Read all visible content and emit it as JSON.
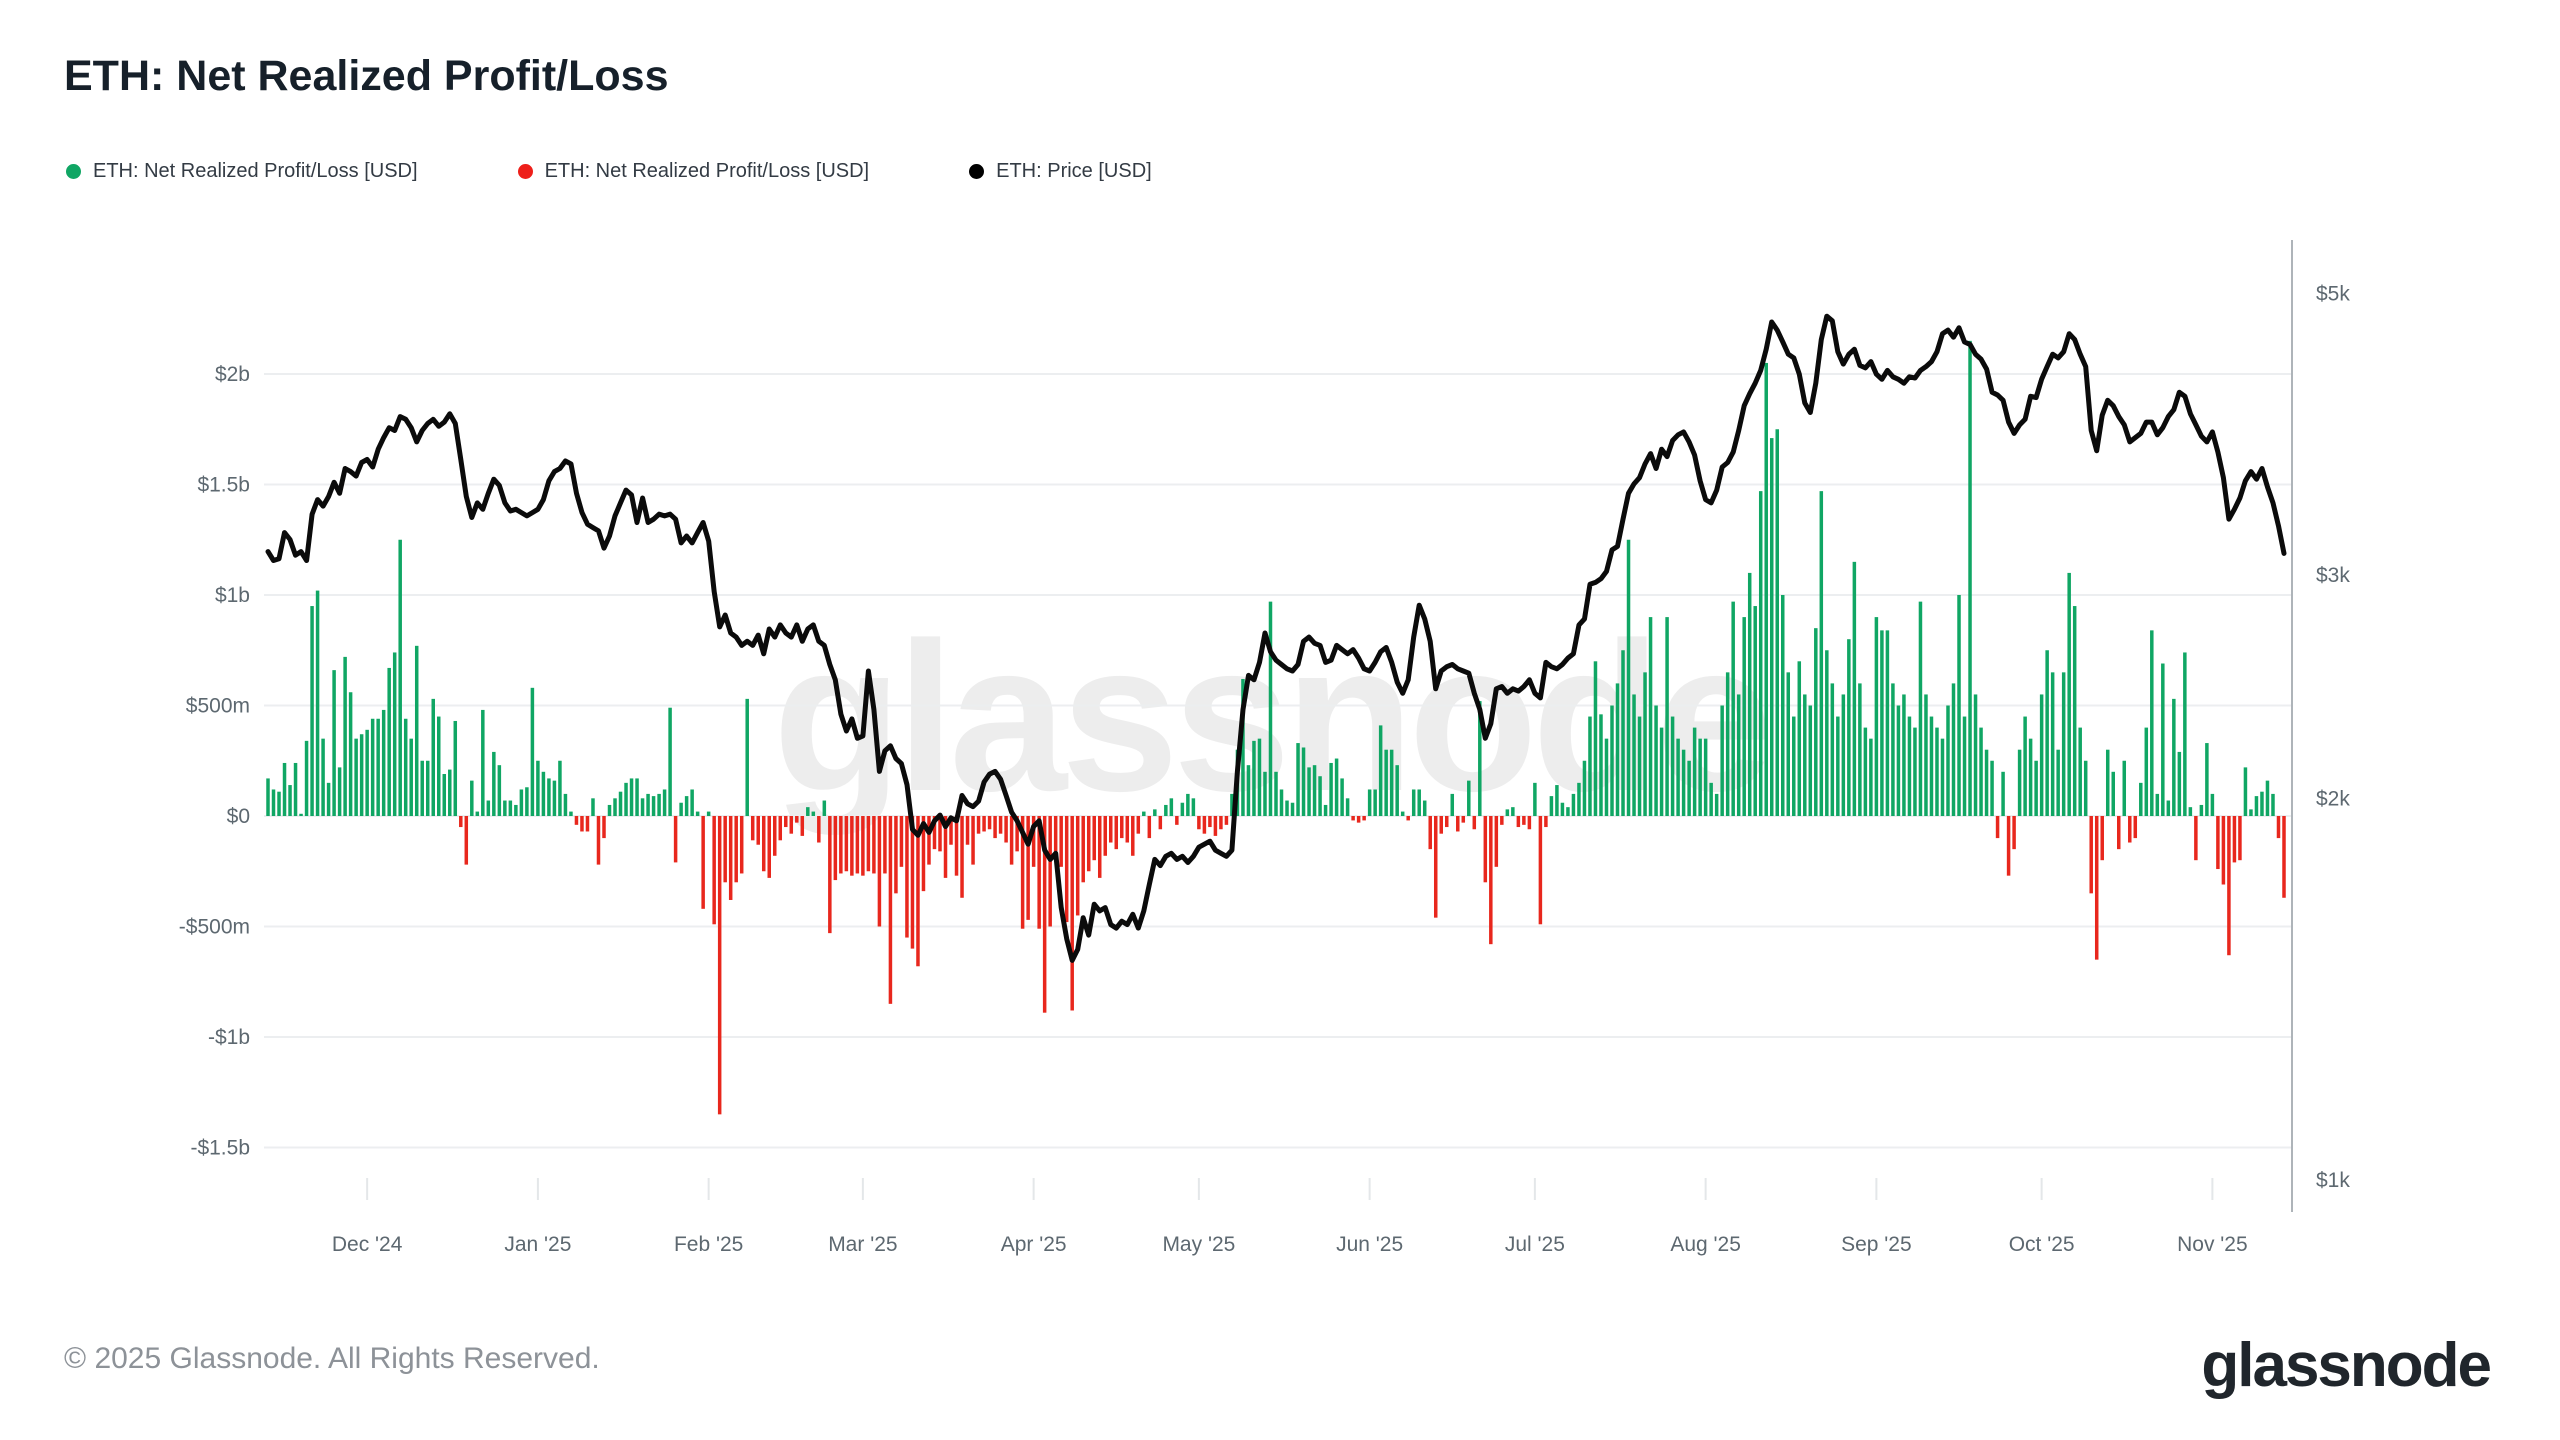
{
  "title": "ETH: Net Realized Profit/Loss",
  "legend": [
    {
      "label": "ETH: Net Realized Profit/Loss [USD]",
      "color": "#10a664",
      "marker": "circle"
    },
    {
      "label": "ETH: Net Realized Profit/Loss [USD]",
      "color": "#ee1f1a",
      "marker": "circle"
    },
    {
      "label": "ETH: Price [USD]",
      "color": "#000000",
      "marker": "circle"
    }
  ],
  "watermark": "glassnode",
  "footer": {
    "copyright": "© 2025 Glassnode. All Rights Reserved.",
    "brand": "glassnode"
  },
  "colors": {
    "profit_bar": "#10a664",
    "loss_bar": "#e8271d",
    "price_line": "#0b0b0b",
    "gridline": "#eceef0",
    "axis_text": "#5d6870",
    "right_spine": "#aeb4b9",
    "month_tick": "#e4e7e9",
    "watermark": "#ededed"
  },
  "chart_data": {
    "type": "bar",
    "title": "ETH: Net Realized Profit/Loss",
    "x_domain": {
      "start_date": "2024-11-13",
      "end_date": "2025-11-14",
      "n_days": 367
    },
    "x_axis": {
      "months": [
        {
          "label": "Dec '24",
          "index": 18
        },
        {
          "label": "Jan '25",
          "index": 49
        },
        {
          "label": "Feb '25",
          "index": 80
        },
        {
          "label": "Mar '25",
          "index": 108
        },
        {
          "label": "Apr '25",
          "index": 139
        },
        {
          "label": "May '25",
          "index": 169
        },
        {
          "label": "Jun '25",
          "index": 200
        },
        {
          "label": "Jul '25",
          "index": 230
        },
        {
          "label": "Aug '25",
          "index": 261
        },
        {
          "label": "Sep '25",
          "index": 292
        },
        {
          "label": "Oct '25",
          "index": 322
        },
        {
          "label": "Nov '25",
          "index": 353
        }
      ]
    },
    "left_axis": {
      "title": "Net Realized Profit/Loss, USD billions",
      "ticks": [
        {
          "label": "$2b",
          "value": 2.0
        },
        {
          "label": "$1.5b",
          "value": 1.5
        },
        {
          "label": "$1b",
          "value": 1.0
        },
        {
          "label": "$500m",
          "value": 0.5
        },
        {
          "label": "$0",
          "value": 0.0
        },
        {
          "label": "-$500m",
          "value": -0.5
        },
        {
          "label": "-$1b",
          "value": -1.0
        },
        {
          "label": "-$1.5b",
          "value": -1.5
        }
      ],
      "range_b": [
        -1.75,
        2.6
      ],
      "grid": true
    },
    "right_axis": {
      "title": "ETH Price, USD",
      "scale": "log",
      "ticks": [
        {
          "label": "$5k",
          "value": 5000
        },
        {
          "label": "$3k",
          "value": 3000
        },
        {
          "label": "$2k",
          "value": 2000
        },
        {
          "label": "$1k",
          "value": 1000
        }
      ]
    },
    "series": [
      {
        "name": "ETH: Net Realized Profit/Loss [USD]",
        "type": "bar",
        "unit": "USD billions",
        "positive_color": "#10a664",
        "negative_color": "#e8271d",
        "values": [
          0.17,
          0.12,
          0.11,
          0.24,
          0.14,
          0.24,
          0.01,
          0.34,
          0.95,
          1.02,
          0.35,
          0.15,
          0.66,
          0.22,
          0.72,
          0.56,
          0.35,
          0.37,
          0.39,
          0.44,
          0.44,
          0.48,
          0.67,
          0.74,
          1.25,
          0.44,
          0.35,
          0.77,
          0.25,
          0.25,
          0.53,
          0.45,
          0.19,
          0.21,
          0.43,
          -0.05,
          -0.22,
          0.16,
          0.02,
          0.48,
          0.07,
          0.29,
          0.23,
          0.07,
          0.07,
          0.05,
          0.12,
          0.13,
          0.58,
          0.25,
          0.2,
          0.17,
          0.16,
          0.25,
          0.1,
          0.02,
          -0.04,
          -0.07,
          -0.07,
          0.08,
          -0.22,
          -0.1,
          0.05,
          0.08,
          0.11,
          0.15,
          0.17,
          0.17,
          0.08,
          0.1,
          0.09,
          0.1,
          0.12,
          0.49,
          -0.21,
          0.06,
          0.09,
          0.12,
          0.02,
          -0.42,
          0.02,
          -0.49,
          -1.35,
          -0.3,
          -0.38,
          -0.3,
          -0.26,
          0.53,
          -0.11,
          -0.13,
          -0.25,
          -0.28,
          -0.18,
          -0.11,
          -0.05,
          -0.08,
          -0.03,
          -0.09,
          0.04,
          0.02,
          -0.12,
          0.07,
          -0.53,
          -0.29,
          -0.26,
          -0.25,
          -0.27,
          -0.26,
          -0.27,
          -0.25,
          -0.26,
          -0.5,
          -0.26,
          -0.85,
          -0.35,
          -0.23,
          -0.55,
          -0.6,
          -0.68,
          -0.34,
          -0.22,
          -0.15,
          -0.16,
          -0.28,
          -0.13,
          -0.27,
          -0.37,
          -0.13,
          -0.22,
          -0.08,
          -0.07,
          -0.06,
          -0.1,
          -0.08,
          -0.12,
          -0.22,
          -0.16,
          -0.51,
          -0.47,
          -0.23,
          -0.51,
          -0.89,
          -0.5,
          -0.16,
          -0.23,
          -0.48,
          -0.88,
          -0.45,
          -0.3,
          -0.25,
          -0.2,
          -0.28,
          -0.18,
          -0.12,
          -0.15,
          -0.1,
          -0.12,
          -0.18,
          -0.08,
          0.02,
          -0.1,
          0.03,
          -0.06,
          0.05,
          0.08,
          -0.04,
          0.06,
          0.1,
          0.08,
          -0.06,
          -0.08,
          -0.05,
          -0.09,
          -0.06,
          -0.04,
          0.1,
          0.3,
          0.62,
          0.23,
          0.34,
          0.35,
          0.2,
          0.97,
          0.2,
          0.12,
          0.07,
          0.06,
          0.33,
          0.31,
          0.22,
          0.23,
          0.18,
          0.05,
          0.24,
          0.26,
          0.17,
          0.08,
          -0.02,
          -0.03,
          -0.02,
          0.12,
          0.12,
          0.41,
          0.3,
          0.3,
          0.23,
          0.02,
          -0.02,
          0.12,
          0.12,
          0.07,
          -0.15,
          -0.46,
          -0.08,
          -0.05,
          0.1,
          -0.07,
          -0.03,
          0.16,
          -0.06,
          0.52,
          -0.3,
          -0.58,
          -0.23,
          -0.04,
          0.03,
          0.04,
          -0.05,
          -0.04,
          -0.06,
          0.15,
          -0.49,
          -0.05,
          0.09,
          0.14,
          0.06,
          0.04,
          0.1,
          0.15,
          0.25,
          0.45,
          0.7,
          0.46,
          0.35,
          0.5,
          0.6,
          0.75,
          1.25,
          0.55,
          0.45,
          0.65,
          0.9,
          0.5,
          0.4,
          0.9,
          0.45,
          0.35,
          0.3,
          0.25,
          0.4,
          0.35,
          0.35,
          0.15,
          0.1,
          0.5,
          0.65,
          0.97,
          0.55,
          0.9,
          1.1,
          0.95,
          1.47,
          2.05,
          1.71,
          1.75,
          1.0,
          0.65,
          0.45,
          0.7,
          0.55,
          0.5,
          0.85,
          1.47,
          0.75,
          0.6,
          0.45,
          0.55,
          0.8,
          1.15,
          0.6,
          0.4,
          0.35,
          0.9,
          0.84,
          0.84,
          0.6,
          0.5,
          0.55,
          0.45,
          0.4,
          0.97,
          0.55,
          0.45,
          0.4,
          0.35,
          0.5,
          0.6,
          1.0,
          0.45,
          2.15,
          0.55,
          0.4,
          0.3,
          0.25,
          -0.1,
          0.2,
          -0.27,
          -0.15,
          0.3,
          0.45,
          0.35,
          0.25,
          0.55,
          0.75,
          0.65,
          0.3,
          0.65,
          1.1,
          0.95,
          0.4,
          0.25,
          -0.35,
          -0.65,
          -0.2,
          0.3,
          0.2,
          -0.15,
          0.25,
          -0.12,
          -0.1,
          0.15,
          0.4,
          0.84,
          0.1,
          0.69,
          0.07,
          0.53,
          0.29,
          0.74,
          0.04,
          -0.2,
          0.05,
          0.33,
          0.1,
          -0.24,
          -0.31,
          -0.63,
          -0.21,
          -0.2,
          0.22,
          0.03,
          0.09,
          0.11,
          0.16,
          0.1,
          -0.1,
          -0.37
        ]
      },
      {
        "name": "ETH: Price [USD]",
        "type": "line",
        "unit": "USD",
        "color": "#0b0b0b",
        "values": [
          3130,
          3080,
          3090,
          3240,
          3200,
          3110,
          3130,
          3080,
          3350,
          3440,
          3400,
          3460,
          3550,
          3480,
          3640,
          3620,
          3590,
          3680,
          3700,
          3650,
          3770,
          3850,
          3920,
          3900,
          4000,
          3980,
          3920,
          3820,
          3900,
          3950,
          3980,
          3930,
          3960,
          4020,
          3950,
          3700,
          3460,
          3330,
          3420,
          3380,
          3480,
          3570,
          3530,
          3420,
          3370,
          3380,
          3360,
          3340,
          3360,
          3380,
          3440,
          3560,
          3620,
          3640,
          3690,
          3670,
          3480,
          3360,
          3290,
          3270,
          3250,
          3150,
          3220,
          3340,
          3420,
          3500,
          3470,
          3300,
          3450,
          3300,
          3320,
          3350,
          3340,
          3350,
          3320,
          3180,
          3220,
          3180,
          3240,
          3300,
          3190,
          2910,
          2730,
          2790,
          2700,
          2680,
          2640,
          2660,
          2640,
          2690,
          2600,
          2720,
          2680,
          2740,
          2700,
          2680,
          2740,
          2660,
          2720,
          2740,
          2660,
          2640,
          2550,
          2480,
          2330,
          2260,
          2310,
          2230,
          2240,
          2520,
          2350,
          2100,
          2180,
          2200,
          2150,
          2130,
          2050,
          1890,
          1870,
          1910,
          1880,
          1920,
          1940,
          1900,
          1930,
          1920,
          2010,
          1980,
          1970,
          1990,
          2060,
          2090,
          2100,
          2070,
          2010,
          1950,
          1920,
          1880,
          1840,
          1900,
          1920,
          1820,
          1790,
          1810,
          1640,
          1550,
          1490,
          1520,
          1610,
          1560,
          1650,
          1630,
          1640,
          1590,
          1580,
          1600,
          1590,
          1620,
          1580,
          1630,
          1710,
          1790,
          1770,
          1800,
          1810,
          1790,
          1800,
          1780,
          1800,
          1830,
          1840,
          1850,
          1820,
          1810,
          1800,
          1820,
          2100,
          2350,
          2500,
          2480,
          2560,
          2700,
          2610,
          2570,
          2550,
          2530,
          2520,
          2550,
          2660,
          2680,
          2650,
          2640,
          2560,
          2570,
          2640,
          2620,
          2600,
          2620,
          2580,
          2530,
          2520,
          2560,
          2610,
          2630,
          2560,
          2470,
          2420,
          2480,
          2680,
          2840,
          2770,
          2660,
          2440,
          2520,
          2540,
          2550,
          2530,
          2520,
          2510,
          2420,
          2350,
          2230,
          2290,
          2440,
          2450,
          2420,
          2440,
          2430,
          2450,
          2480,
          2420,
          2400,
          2560,
          2540,
          2530,
          2550,
          2580,
          2600,
          2740,
          2770,
          2950,
          2960,
          2980,
          3020,
          3140,
          3160,
          3320,
          3480,
          3540,
          3580,
          3670,
          3740,
          3640,
          3770,
          3720,
          3830,
          3870,
          3890,
          3820,
          3730,
          3560,
          3440,
          3420,
          3500,
          3650,
          3680,
          3750,
          3900,
          4080,
          4170,
          4250,
          4350,
          4520,
          4750,
          4680,
          4580,
          4480,
          4450,
          4320,
          4100,
          4030,
          4250,
          4600,
          4800,
          4760,
          4500,
          4400,
          4480,
          4520,
          4390,
          4370,
          4420,
          4320,
          4280,
          4350,
          4300,
          4280,
          4250,
          4300,
          4290,
          4350,
          4380,
          4420,
          4500,
          4650,
          4680,
          4620,
          4700,
          4580,
          4560,
          4480,
          4440,
          4360,
          4180,
          4160,
          4120,
          3960,
          3880,
          3940,
          3980,
          4150,
          4140,
          4280,
          4380,
          4480,
          4450,
          4500,
          4650,
          4600,
          4480,
          4380,
          3900,
          3760,
          4010,
          4120,
          4080,
          4000,
          3940,
          3820,
          3850,
          3880,
          3960,
          3960,
          3870,
          3920,
          4000,
          4050,
          4180,
          4150,
          4020,
          3940,
          3860,
          3820,
          3890,
          3750,
          3580,
          3320,
          3380,
          3450,
          3560,
          3620,
          3570,
          3640,
          3520,
          3420,
          3280,
          3120
        ]
      }
    ]
  }
}
